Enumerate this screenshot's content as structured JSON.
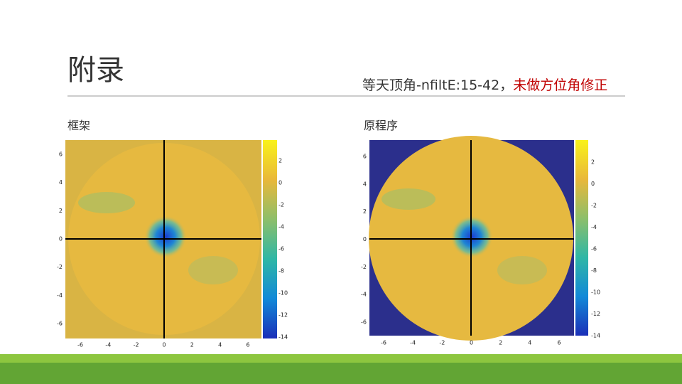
{
  "header": {
    "title": "附录",
    "subtitle": "等天顶角-nfiltE:15-42，",
    "subtitle_note": "未做方位角修正"
  },
  "figures": [
    {
      "caption": "框架",
      "xticks": [
        -6,
        -4,
        -2,
        0,
        2,
        4,
        6
      ],
      "yticks": [
        6,
        4,
        2,
        0,
        -2,
        -4,
        -6
      ],
      "colorbar_ticks": [
        2,
        0,
        -2,
        -4,
        -6,
        -8,
        -10,
        -12,
        -14
      ]
    },
    {
      "caption": "原程序",
      "xticks": [
        -6,
        -4,
        -2,
        0,
        2,
        4,
        6
      ],
      "yticks": [
        6,
        4,
        2,
        0,
        -2,
        -4,
        -6
      ],
      "colorbar_ticks": [
        2,
        0,
        -2,
        -4,
        -6,
        -8,
        -10,
        -12,
        -14
      ]
    }
  ]
}
